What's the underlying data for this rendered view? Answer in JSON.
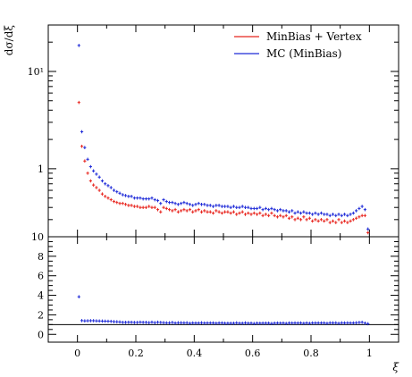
{
  "chart_data": [
    {
      "type": "scatter",
      "panel": "main",
      "ylabel": "dσ/dξ",
      "yscale": "log",
      "ylim": [
        0.2,
        30
      ],
      "xlim": [
        -0.1,
        1.1
      ],
      "y_tick_labels": [
        {
          "value": 10,
          "label": "10¹"
        },
        {
          "value": 1,
          "label": "1"
        }
      ],
      "legend_position": "top-right",
      "series": [
        {
          "name": "MinBias + Vertex",
          "color": "#e8261f",
          "x": [
            0.005,
            0.015,
            0.025,
            0.035,
            0.045,
            0.055,
            0.065,
            0.075,
            0.085,
            0.095,
            0.105,
            0.115,
            0.125,
            0.135,
            0.145,
            0.155,
            0.165,
            0.175,
            0.185,
            0.195,
            0.205,
            0.215,
            0.225,
            0.235,
            0.245,
            0.255,
            0.265,
            0.275,
            0.285,
            0.295,
            0.305,
            0.315,
            0.325,
            0.335,
            0.345,
            0.355,
            0.365,
            0.375,
            0.385,
            0.395,
            0.405,
            0.415,
            0.425,
            0.435,
            0.445,
            0.455,
            0.465,
            0.475,
            0.485,
            0.495,
            0.505,
            0.515,
            0.525,
            0.535,
            0.545,
            0.555,
            0.565,
            0.575,
            0.585,
            0.595,
            0.605,
            0.615,
            0.625,
            0.635,
            0.645,
            0.655,
            0.665,
            0.675,
            0.685,
            0.695,
            0.705,
            0.715,
            0.725,
            0.735,
            0.745,
            0.755,
            0.765,
            0.775,
            0.785,
            0.795,
            0.805,
            0.815,
            0.825,
            0.835,
            0.845,
            0.855,
            0.865,
            0.875,
            0.885,
            0.895,
            0.905,
            0.915,
            0.925,
            0.935,
            0.945,
            0.955,
            0.965,
            0.975,
            0.985,
            0.995
          ],
          "y": [
            4.8,
            1.7,
            1.2,
            0.9,
            0.75,
            0.68,
            0.64,
            0.6,
            0.55,
            0.52,
            0.5,
            0.48,
            0.46,
            0.45,
            0.44,
            0.44,
            0.43,
            0.42,
            0.42,
            0.41,
            0.41,
            0.4,
            0.4,
            0.4,
            0.41,
            0.4,
            0.4,
            0.38,
            0.36,
            0.4,
            0.39,
            0.38,
            0.37,
            0.38,
            0.36,
            0.37,
            0.38,
            0.37,
            0.38,
            0.36,
            0.37,
            0.38,
            0.36,
            0.37,
            0.36,
            0.36,
            0.35,
            0.37,
            0.36,
            0.35,
            0.36,
            0.36,
            0.35,
            0.36,
            0.34,
            0.35,
            0.36,
            0.34,
            0.35,
            0.34,
            0.35,
            0.34,
            0.35,
            0.33,
            0.34,
            0.33,
            0.35,
            0.33,
            0.32,
            0.33,
            0.32,
            0.33,
            0.31,
            0.32,
            0.3,
            0.31,
            0.3,
            0.32,
            0.3,
            0.31,
            0.29,
            0.3,
            0.29,
            0.3,
            0.29,
            0.3,
            0.28,
            0.29,
            0.28,
            0.3,
            0.28,
            0.29,
            0.28,
            0.29,
            0.3,
            0.31,
            0.32,
            0.33,
            0.33,
            0.22
          ]
        },
        {
          "name": "MC (MinBias)",
          "color": "#1f2bd8",
          "x": [
            0.005,
            0.015,
            0.025,
            0.035,
            0.045,
            0.055,
            0.065,
            0.075,
            0.085,
            0.095,
            0.105,
            0.115,
            0.125,
            0.135,
            0.145,
            0.155,
            0.165,
            0.175,
            0.185,
            0.195,
            0.205,
            0.215,
            0.225,
            0.235,
            0.245,
            0.255,
            0.265,
            0.275,
            0.285,
            0.295,
            0.305,
            0.315,
            0.325,
            0.335,
            0.345,
            0.355,
            0.365,
            0.375,
            0.385,
            0.395,
            0.405,
            0.415,
            0.425,
            0.435,
            0.445,
            0.455,
            0.465,
            0.475,
            0.485,
            0.495,
            0.505,
            0.515,
            0.525,
            0.535,
            0.545,
            0.555,
            0.565,
            0.575,
            0.585,
            0.595,
            0.605,
            0.615,
            0.625,
            0.635,
            0.645,
            0.655,
            0.665,
            0.675,
            0.685,
            0.695,
            0.705,
            0.715,
            0.725,
            0.735,
            0.745,
            0.755,
            0.765,
            0.775,
            0.785,
            0.795,
            0.805,
            0.815,
            0.825,
            0.835,
            0.845,
            0.855,
            0.865,
            0.875,
            0.885,
            0.895,
            0.905,
            0.915,
            0.925,
            0.935,
            0.945,
            0.955,
            0.965,
            0.975,
            0.985,
            0.995
          ],
          "y": [
            18.5,
            2.4,
            1.65,
            1.25,
            1.05,
            0.95,
            0.88,
            0.82,
            0.75,
            0.7,
            0.67,
            0.64,
            0.6,
            0.58,
            0.56,
            0.54,
            0.53,
            0.52,
            0.52,
            0.5,
            0.5,
            0.5,
            0.49,
            0.49,
            0.49,
            0.5,
            0.48,
            0.47,
            0.44,
            0.48,
            0.46,
            0.45,
            0.45,
            0.44,
            0.43,
            0.44,
            0.45,
            0.44,
            0.43,
            0.42,
            0.43,
            0.44,
            0.43,
            0.43,
            0.42,
            0.42,
            0.41,
            0.42,
            0.42,
            0.41,
            0.41,
            0.41,
            0.4,
            0.41,
            0.4,
            0.4,
            0.41,
            0.4,
            0.4,
            0.39,
            0.39,
            0.39,
            0.4,
            0.38,
            0.39,
            0.38,
            0.39,
            0.38,
            0.37,
            0.38,
            0.37,
            0.37,
            0.36,
            0.37,
            0.35,
            0.36,
            0.35,
            0.36,
            0.35,
            0.35,
            0.34,
            0.35,
            0.34,
            0.35,
            0.34,
            0.34,
            0.33,
            0.34,
            0.33,
            0.34,
            0.33,
            0.34,
            0.33,
            0.34,
            0.35,
            0.37,
            0.39,
            0.41,
            0.38,
            0.24
          ]
        }
      ]
    },
    {
      "type": "scatter",
      "panel": "ratio",
      "xlabel": "ξ",
      "ylim": [
        -0.8,
        10
      ],
      "xlim": [
        -0.1,
        1.1
      ],
      "y_ticks": [
        0,
        2,
        4,
        6,
        8,
        10
      ],
      "y_tick_labels": [
        "0",
        "2",
        "4",
        "6",
        "8",
        "10"
      ],
      "x_ticks": [
        0,
        0.2,
        0.4,
        0.6,
        0.8,
        1
      ],
      "x_tick_labels": [
        "0",
        "0.2",
        "0.4",
        "0.6",
        "0.8",
        "1"
      ],
      "reference_line": 1,
      "series": [
        {
          "name": "MC (MinBias)",
          "color": "#1f2bd8",
          "x": [
            0.005,
            0.015,
            0.025,
            0.035,
            0.045,
            0.055,
            0.065,
            0.075,
            0.085,
            0.095,
            0.105,
            0.115,
            0.125,
            0.135,
            0.145,
            0.155,
            0.165,
            0.175,
            0.185,
            0.195,
            0.205,
            0.215,
            0.225,
            0.235,
            0.245,
            0.255,
            0.265,
            0.275,
            0.285,
            0.295,
            0.305,
            0.315,
            0.325,
            0.335,
            0.345,
            0.355,
            0.365,
            0.375,
            0.385,
            0.395,
            0.405,
            0.415,
            0.425,
            0.435,
            0.445,
            0.455,
            0.465,
            0.475,
            0.485,
            0.495,
            0.505,
            0.515,
            0.525,
            0.535,
            0.545,
            0.555,
            0.565,
            0.575,
            0.585,
            0.595,
            0.605,
            0.615,
            0.625,
            0.635,
            0.645,
            0.655,
            0.665,
            0.675,
            0.685,
            0.695,
            0.705,
            0.715,
            0.725,
            0.735,
            0.745,
            0.755,
            0.765,
            0.775,
            0.785,
            0.795,
            0.805,
            0.815,
            0.825,
            0.835,
            0.845,
            0.855,
            0.865,
            0.875,
            0.885,
            0.895,
            0.905,
            0.915,
            0.925,
            0.935,
            0.945,
            0.955,
            0.965,
            0.975,
            0.985,
            0.995
          ],
          "y": [
            3.85,
            1.41,
            1.38,
            1.39,
            1.4,
            1.4,
            1.38,
            1.37,
            1.36,
            1.35,
            1.34,
            1.33,
            1.3,
            1.29,
            1.27,
            1.23,
            1.23,
            1.24,
            1.24,
            1.22,
            1.22,
            1.25,
            1.23,
            1.23,
            1.2,
            1.25,
            1.2,
            1.24,
            1.22,
            1.2,
            1.18,
            1.18,
            1.22,
            1.16,
            1.19,
            1.19,
            1.18,
            1.19,
            1.13,
            1.17,
            1.16,
            1.16,
            1.19,
            1.16,
            1.17,
            1.17,
            1.17,
            1.14,
            1.17,
            1.17,
            1.14,
            1.14,
            1.14,
            1.14,
            1.18,
            1.14,
            1.14,
            1.18,
            1.14,
            1.15,
            1.11,
            1.15,
            1.14,
            1.15,
            1.15,
            1.15,
            1.11,
            1.15,
            1.16,
            1.15,
            1.16,
            1.12,
            1.16,
            1.16,
            1.17,
            1.16,
            1.17,
            1.13,
            1.17,
            1.13,
            1.17,
            1.17,
            1.17,
            1.17,
            1.17,
            1.13,
            1.18,
            1.17,
            1.18,
            1.13,
            1.18,
            1.17,
            1.18,
            1.17,
            1.17,
            1.19,
            1.22,
            1.24,
            1.15,
            1.09
          ]
        }
      ]
    }
  ]
}
